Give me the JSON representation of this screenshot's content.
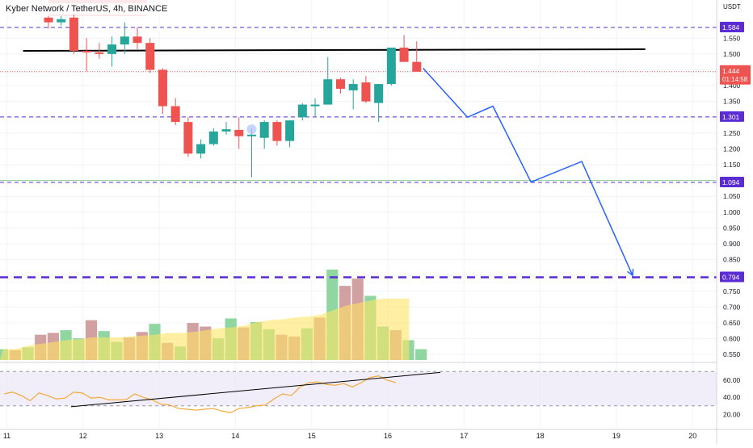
{
  "chart_title": "Kyber Network / TetherUS, 4h, BINANCE",
  "colors": {
    "up": "#26a69a",
    "down": "#ef5350",
    "projection": "#2962ff",
    "trendline": "#000000",
    "purple_level": "#5b2bd6",
    "axis_text": "#131722",
    "grid": "#f0f3fa",
    "vol_up": "#7ccf8f",
    "vol_down": "#c98f8f",
    "vol_ma": "#ffe566",
    "rsi": "#f2a93b",
    "rsi_band": "#ede7f6"
  },
  "chart_data": {
    "type": "candlestick",
    "title": "Kyber Network / TetherUS, 4h, BINANCE",
    "price_axis_unit": "USDT",
    "ylim": [
      0.53,
      1.64
    ],
    "price_ticks": [
      "1.550",
      "1.500",
      "1.450",
      "1.400",
      "1.350",
      "1.300",
      "1.250",
      "1.200",
      "1.150",
      "1.100",
      "1.050",
      "1.000",
      "0.950",
      "0.900",
      "0.850",
      "0.800",
      "0.750",
      "0.700",
      "0.650",
      "0.600",
      "0.550"
    ],
    "x_ticks": [
      "11",
      "12",
      "13",
      "14",
      "15",
      "16",
      "17",
      "18",
      "19",
      "20"
    ],
    "candles": [
      {
        "o": 1.615,
        "h": 1.62,
        "l": 1.58,
        "c": 1.6
      },
      {
        "o": 1.6,
        "h": 1.62,
        "l": 1.59,
        "c": 1.61
      },
      {
        "o": 1.615,
        "h": 1.625,
        "l": 1.5,
        "c": 1.51
      },
      {
        "o": 1.51,
        "h": 1.55,
        "l": 1.445,
        "c": 1.505
      },
      {
        "o": 1.505,
        "h": 1.535,
        "l": 1.485,
        "c": 1.5
      },
      {
        "o": 1.5,
        "h": 1.555,
        "l": 1.46,
        "c": 1.53
      },
      {
        "o": 1.53,
        "h": 1.6,
        "l": 1.5,
        "c": 1.555
      },
      {
        "o": 1.555,
        "h": 1.585,
        "l": 1.515,
        "c": 1.535
      },
      {
        "o": 1.535,
        "h": 1.55,
        "l": 1.44,
        "c": 1.45
      },
      {
        "o": 1.45,
        "h": 1.455,
        "l": 1.31,
        "c": 1.335
      },
      {
        "o": 1.335,
        "h": 1.36,
        "l": 1.275,
        "c": 1.285
      },
      {
        "o": 1.285,
        "h": 1.3,
        "l": 1.175,
        "c": 1.185
      },
      {
        "o": 1.185,
        "h": 1.23,
        "l": 1.17,
        "c": 1.215
      },
      {
        "o": 1.215,
        "h": 1.265,
        "l": 1.21,
        "c": 1.255
      },
      {
        "o": 1.255,
        "h": 1.285,
        "l": 1.245,
        "c": 1.262
      },
      {
        "o": 1.26,
        "h": 1.3,
        "l": 1.2,
        "c": 1.24
      },
      {
        "o": 1.24,
        "h": 1.265,
        "l": 1.11,
        "c": 1.245
      },
      {
        "o": 1.235,
        "h": 1.29,
        "l": 1.2,
        "c": 1.285
      },
      {
        "o": 1.285,
        "h": 1.29,
        "l": 1.21,
        "c": 1.225
      },
      {
        "o": 1.225,
        "h": 1.29,
        "l": 1.205,
        "c": 1.29
      },
      {
        "o": 1.3,
        "h": 1.345,
        "l": 1.29,
        "c": 1.34
      },
      {
        "o": 1.34,
        "h": 1.36,
        "l": 1.3,
        "c": 1.34
      },
      {
        "o": 1.34,
        "h": 1.49,
        "l": 1.34,
        "c": 1.42
      },
      {
        "o": 1.42,
        "h": 1.425,
        "l": 1.375,
        "c": 1.39
      },
      {
        "o": 1.385,
        "h": 1.42,
        "l": 1.325,
        "c": 1.405
      },
      {
        "o": 1.41,
        "h": 1.43,
        "l": 1.345,
        "c": 1.35
      },
      {
        "o": 1.345,
        "h": 1.405,
        "l": 1.285,
        "c": 1.405
      },
      {
        "o": 1.405,
        "h": 1.52,
        "l": 1.4,
        "c": 1.52
      },
      {
        "o": 1.52,
        "h": 1.56,
        "l": 1.475,
        "c": 1.475
      },
      {
        "o": 1.475,
        "h": 1.54,
        "l": 1.445,
        "c": 1.444
      }
    ],
    "volumes": [
      0.12,
      0.11,
      0.14,
      0.28,
      0.3,
      0.33,
      0.24,
      0.44,
      0.32,
      0.2,
      0.25,
      0.31,
      0.4,
      0.19,
      0.15,
      0.41,
      0.37,
      0.24,
      0.46,
      0.36,
      0.42,
      0.34,
      0.28,
      0.26,
      0.35,
      0.47,
      1.0,
      0.82,
      0.9,
      0.71,
      0.37,
      0.33,
      0.22,
      0.12
    ],
    "volume_ma": [
      0.12,
      0.12,
      0.16,
      0.18,
      0.2,
      0.22,
      0.23,
      0.25,
      0.25,
      0.25,
      0.26,
      0.27,
      0.28,
      0.3,
      0.3,
      0.31,
      0.33,
      0.35,
      0.36,
      0.38,
      0.42,
      0.44,
      0.45,
      0.47,
      0.48,
      0.5,
      0.55,
      0.6,
      0.63,
      0.66,
      0.68,
      0.68,
      0.68
    ],
    "rsi": {
      "ticks": [
        "60.00",
        "40.00",
        "20.00"
      ],
      "band": [
        30,
        70
      ],
      "values": [
        44,
        46,
        42,
        36,
        45,
        42,
        38,
        39,
        46,
        45,
        39,
        40,
        37,
        37,
        37,
        44,
        40,
        37,
        32,
        31,
        27,
        26,
        25,
        26,
        27,
        24,
        22,
        27,
        28,
        30,
        31,
        38,
        44,
        42,
        52,
        57,
        58,
        55,
        54,
        56,
        52,
        57,
        63,
        65,
        60,
        57
      ]
    },
    "horizontal_lines": [
      {
        "name": "level-1584",
        "value": 1.584,
        "label": "1.584",
        "style": "dashed-purple"
      },
      {
        "name": "level-1301",
        "value": 1.301,
        "label": "1.301",
        "style": "dashed-purple"
      },
      {
        "name": "level-1094",
        "value": 1.094,
        "label": "1.094",
        "style": "dashed-purple"
      },
      {
        "name": "level-0794",
        "value": 0.794,
        "label": "0.794",
        "style": "thick-dashed-purple"
      },
      {
        "name": "green-line",
        "value": 1.1,
        "style": "thin-green"
      },
      {
        "name": "red-dotted-line",
        "value": 1.444,
        "style": "dotted-red"
      }
    ],
    "last_price": {
      "value": "1.444",
      "countdown": "01:14:58"
    },
    "projection_path": [
      [
        29.5,
        1.455
      ],
      [
        33,
        1.3
      ],
      [
        35,
        1.335
      ],
      [
        38,
        1.095
      ],
      [
        42,
        1.16
      ],
      [
        46,
        0.8
      ]
    ],
    "trendline": {
      "from": [
        -2,
        1.51
      ],
      "to": [
        47,
        1.515
      ]
    }
  }
}
